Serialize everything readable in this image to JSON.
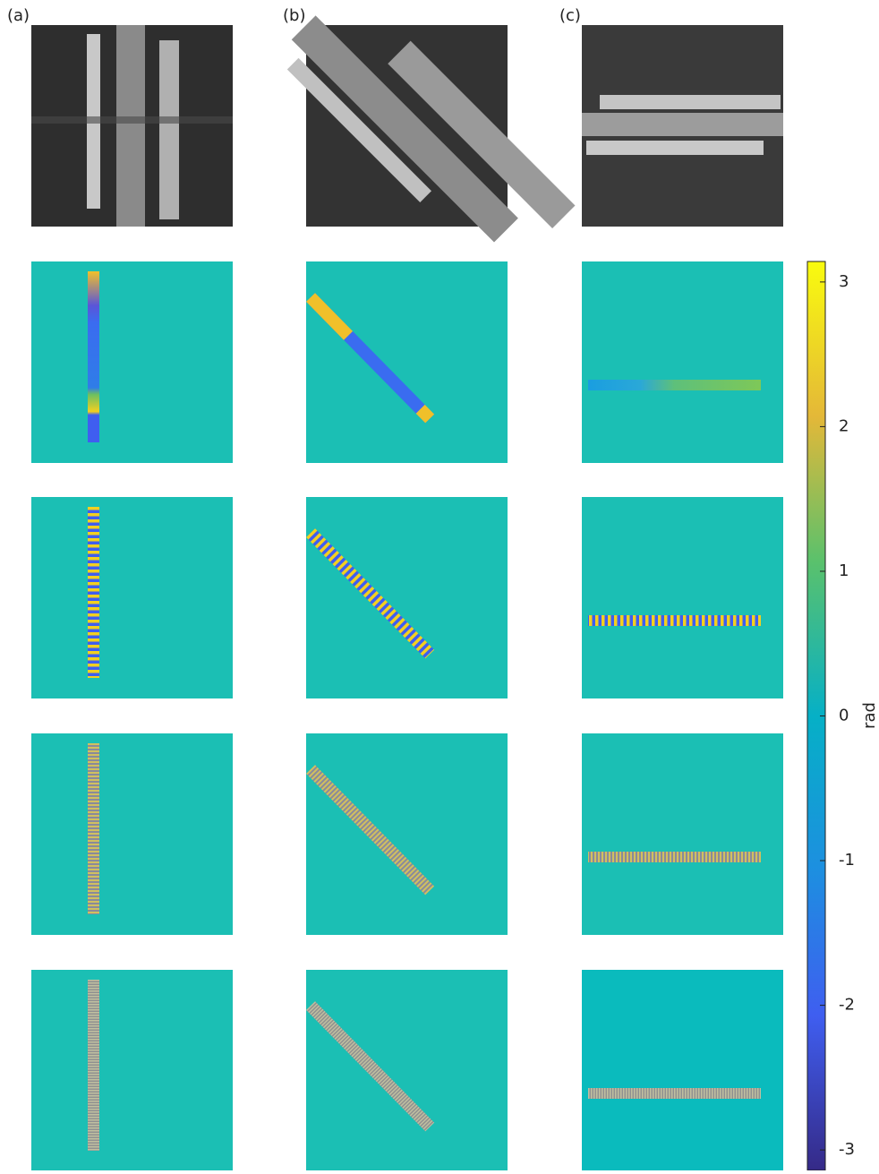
{
  "panel_labels": [
    "(a)",
    "(b)",
    "(c)"
  ],
  "colorbar": {
    "lim": [
      -3.1416,
      3.1416
    ],
    "ticks": [
      3,
      2,
      1,
      0,
      -1,
      -2,
      -3
    ],
    "label": "rad"
  }
}
